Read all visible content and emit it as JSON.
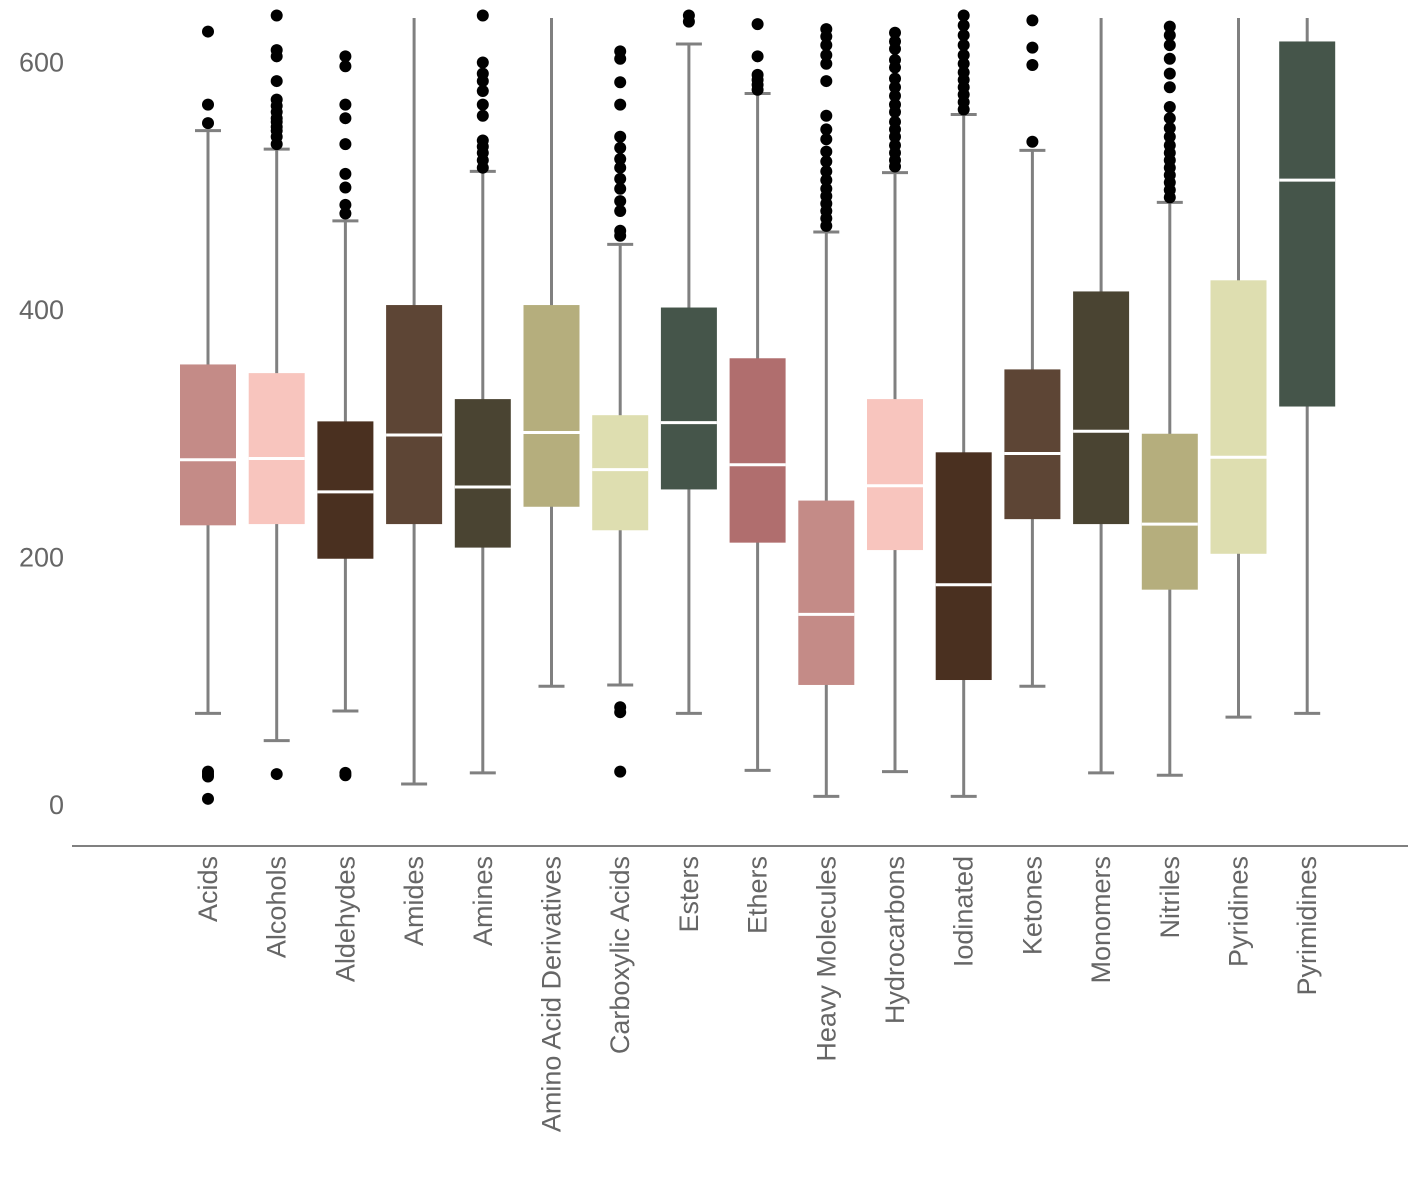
{
  "chart_data": {
    "type": "box",
    "title": "",
    "xlabel": "",
    "ylabel": "",
    "ylim": [
      -33,
      640
    ],
    "yticks": [
      0,
      200,
      400,
      600
    ],
    "grid": false,
    "legend": "none",
    "colors": {
      "whisker": "#808080",
      "median": "#ffffff",
      "outlier": "#000000",
      "axis": "#808080",
      "text": "#666666"
    },
    "categories": [
      "Acids",
      "Alcohols",
      "Aldehydes",
      "Amides",
      "Amines",
      "Amino Acid Derivatives",
      "Carboxylic Acids",
      "Esters",
      "Ethers",
      "Heavy Molecules",
      "Hydrocarbons",
      "Iodinated",
      "Ketones",
      "Monomers",
      "Nitriles",
      "Pyridines",
      "Pyrimidines"
    ],
    "boxes": [
      {
        "label": "Acids",
        "color": "#c48b87",
        "whisker_low": 74,
        "q1": 226,
        "median": 279,
        "q3": 356,
        "whisker_high": 545,
        "outliers": [
          5,
          23,
          25,
          27,
          551,
          566,
          625
        ]
      },
      {
        "label": "Alcohols",
        "color": "#f8c5be",
        "whisker_low": 52,
        "q1": 227,
        "median": 280,
        "q3": 349,
        "whisker_high": 530,
        "outliers": [
          25,
          534,
          540,
          545,
          548,
          552,
          555,
          560,
          565,
          570,
          585,
          605,
          610,
          638
        ]
      },
      {
        "label": "Aldehydes",
        "color": "#4a3020",
        "whisker_low": 76,
        "q1": 199,
        "median": 253,
        "q3": 310,
        "whisker_high": 472,
        "outliers": [
          24,
          26,
          478,
          485,
          499,
          510,
          534,
          555,
          566,
          597,
          605
        ]
      },
      {
        "label": "Amides",
        "color": "#5d4535",
        "whisker_low": 17,
        "q1": 227,
        "median": 299,
        "q3": 404,
        "whisker_high": 640,
        "outliers": []
      },
      {
        "label": "Amines",
        "color": "#4a4432",
        "whisker_low": 26,
        "q1": 208,
        "median": 257,
        "q3": 328,
        "whisker_high": 512,
        "outliers": [
          515,
          521,
          527,
          532,
          537,
          557,
          566,
          577,
          585,
          591,
          600,
          638
        ]
      },
      {
        "label": "Amino Acid Derivatives",
        "color": "#b5ae7d",
        "whisker_low": 96,
        "q1": 241,
        "median": 301,
        "q3": 404,
        "whisker_high": 640,
        "outliers": []
      },
      {
        "label": "Carboxylic Acids",
        "color": "#dedeb0",
        "whisker_low": 97,
        "q1": 222,
        "median": 271,
        "q3": 315,
        "whisker_high": 453,
        "outliers": [
          27,
          75,
          79,
          460,
          464,
          480,
          488,
          498,
          506,
          515,
          522,
          531,
          540,
          566,
          584,
          603,
          609
        ]
      },
      {
        "label": "Esters",
        "color": "#45554a",
        "whisker_low": 74,
        "q1": 255,
        "median": 309,
        "q3": 402,
        "whisker_high": 615,
        "outliers": [
          633,
          638
        ]
      },
      {
        "label": "Ethers",
        "color": "#b06e6e",
        "whisker_low": 28,
        "q1": 212,
        "median": 275,
        "q3": 361,
        "whisker_high": 575,
        "outliers": [
          578,
          582,
          586,
          590,
          605,
          631
        ]
      },
      {
        "label": "Heavy Molecules",
        "color": "#c48b87",
        "whisker_low": 7,
        "q1": 97,
        "median": 154,
        "q3": 246,
        "whisker_high": 463,
        "outliers": [
          468,
          474,
          480,
          486,
          492,
          498,
          505,
          512,
          520,
          528,
          538,
          546,
          557,
          585,
          599,
          606,
          614,
          621,
          627
        ]
      },
      {
        "label": "Hydrocarbons",
        "color": "#f8c5be",
        "whisker_low": 27,
        "q1": 206,
        "median": 258,
        "q3": 328,
        "whisker_high": 511,
        "outliers": [
          516,
          521,
          527,
          533,
          540,
          546,
          552,
          560,
          566,
          573,
          580,
          587,
          596,
          602,
          611,
          617,
          624
        ]
      },
      {
        "label": "Iodinated",
        "color": "#4a3020",
        "whisker_low": 7,
        "q1": 101,
        "median": 178,
        "q3": 285,
        "whisker_high": 558,
        "outliers": [
          562,
          568,
          574,
          580,
          586,
          592,
          599,
          606,
          614,
          622,
          630,
          638
        ]
      },
      {
        "label": "Ketones",
        "color": "#5d4535",
        "whisker_low": 96,
        "q1": 231,
        "median": 284,
        "q3": 352,
        "whisker_high": 529,
        "outliers": [
          536,
          598,
          612,
          634
        ]
      },
      {
        "label": "Monomers",
        "color": "#4a4432",
        "whisker_low": 26,
        "q1": 227,
        "median": 302,
        "q3": 415,
        "whisker_high": 640,
        "outliers": []
      },
      {
        "label": "Nitriles",
        "color": "#b5ae7d",
        "whisker_low": 24,
        "q1": 174,
        "median": 227,
        "q3": 300,
        "whisker_high": 487,
        "outliers": [
          491,
          497,
          503,
          509,
          515,
          521,
          527,
          533,
          540,
          547,
          555,
          564,
          580,
          591,
          603,
          614,
          622,
          629
        ]
      },
      {
        "label": "Pyridines",
        "color": "#dedeb0",
        "whisker_low": 71,
        "q1": 203,
        "median": 281,
        "q3": 424,
        "whisker_high": 640,
        "outliers": []
      },
      {
        "label": "Pyrimidines",
        "color": "#45554a",
        "whisker_low": 74,
        "q1": 322,
        "median": 505,
        "q3": 617,
        "whisker_high": 640,
        "outliers": []
      }
    ]
  }
}
